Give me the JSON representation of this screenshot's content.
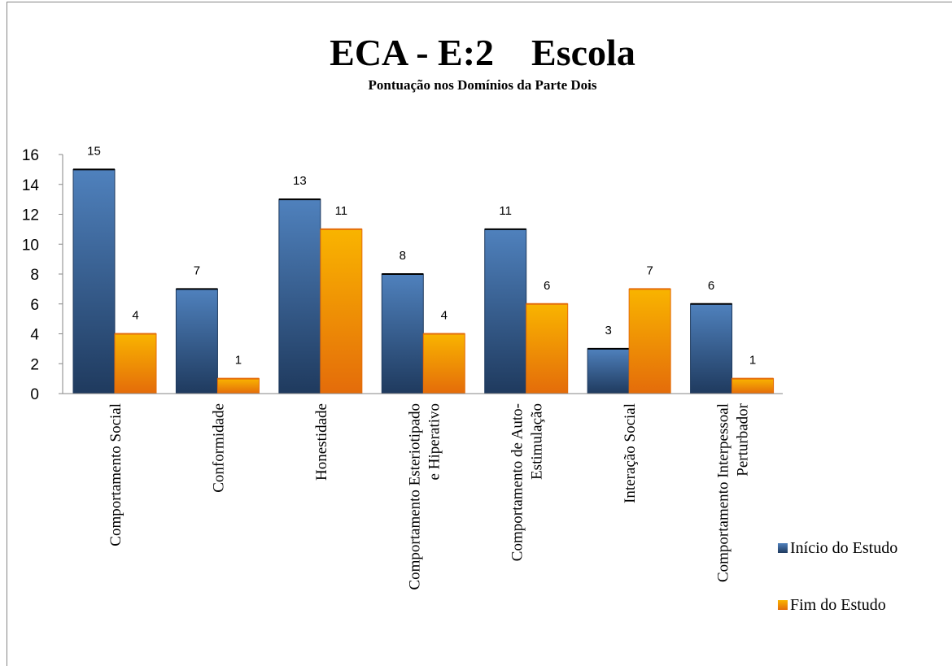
{
  "chart_data": {
    "type": "bar",
    "title": "ECA - E:2    Escola",
    "subtitle": "Pontuação nos Domínios da Parte Dois",
    "categories": [
      [
        "Comportamento Social"
      ],
      [
        "Conformidade"
      ],
      [
        "Honestidade"
      ],
      [
        "Comportamento Esteriotipado",
        "e Hiperativo"
      ],
      [
        "Comportamento de Auto-",
        "Estimulação"
      ],
      [
        "Interação Social"
      ],
      [
        "Comportamento Interpessoal",
        "Perturbador"
      ]
    ],
    "series": [
      {
        "name": "Início do Estudo",
        "values": [
          15,
          7,
          13,
          8,
          11,
          3,
          6
        ],
        "color": "#4f81bd",
        "color_dark": "#1f3a5e"
      },
      {
        "name": "Fim do Estudo",
        "values": [
          4,
          1,
          11,
          4,
          6,
          7,
          1
        ],
        "color": "#f9b400",
        "color_dark": "#e46c0a"
      }
    ],
    "ylim": [
      0,
      16
    ],
    "yticks": [
      0,
      2,
      4,
      6,
      8,
      10,
      12,
      14,
      16
    ],
    "grid": false,
    "legend": "right"
  }
}
